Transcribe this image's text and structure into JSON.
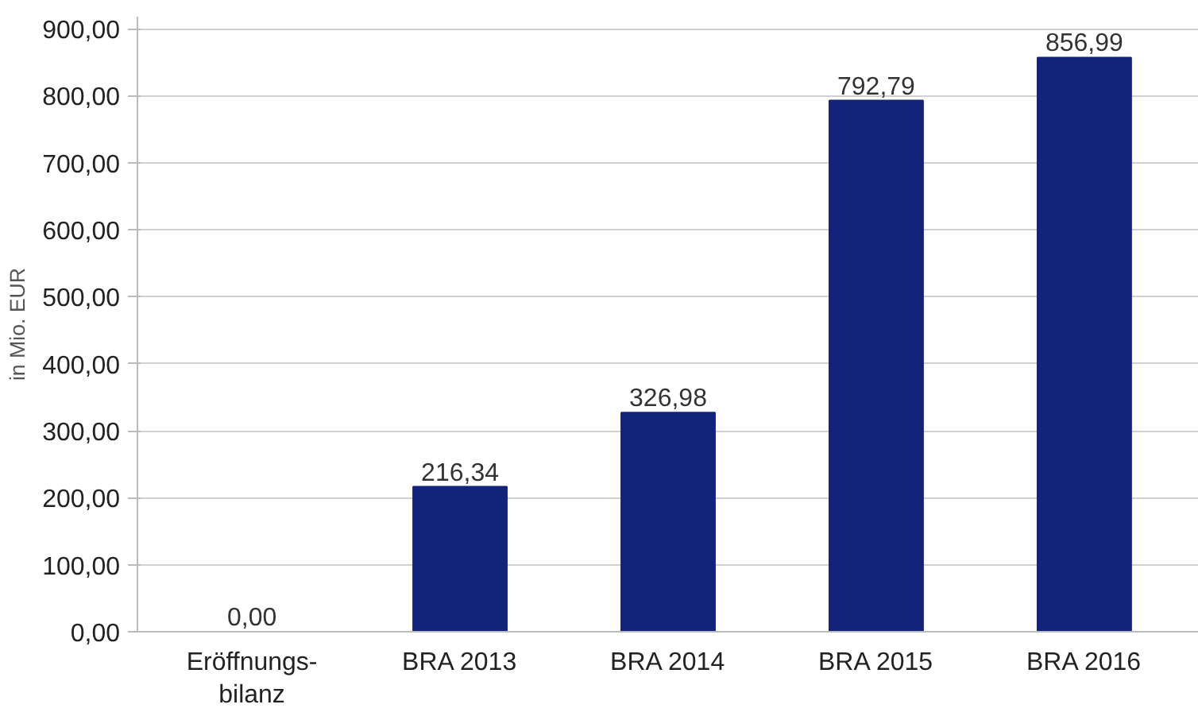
{
  "chart_data": {
    "type": "bar",
    "ylabel": "in Mio. EUR",
    "categories": [
      "Eröffnungs-\nbilanz",
      "BRA 2013",
      "BRA 2014",
      "BRA 2015",
      "BRA 2016"
    ],
    "values": [
      0,
      216.34,
      326.98,
      792.79,
      856.99
    ],
    "value_labels": [
      "0,00",
      "216,34",
      "326,98",
      "792,79",
      "856,99"
    ],
    "color": "#14237a",
    "ylim": [
      0,
      900
    ],
    "yticks": [
      {
        "value": 0,
        "label": "0,00"
      },
      {
        "value": 100,
        "label": "100,00"
      },
      {
        "value": 200,
        "label": "200,00"
      },
      {
        "value": 300,
        "label": "300,00"
      },
      {
        "value": 400,
        "label": "400,00"
      },
      {
        "value": 500,
        "label": "500,00"
      },
      {
        "value": 600,
        "label": "600,00"
      },
      {
        "value": 700,
        "label": "700,00"
      },
      {
        "value": 800,
        "label": "800,00"
      },
      {
        "value": 900,
        "label": "900,00"
      }
    ],
    "grid": "y"
  }
}
